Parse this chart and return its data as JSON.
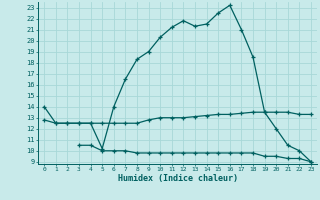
{
  "xlabel": "Humidex (Indice chaleur)",
  "bg_color": "#c8eaea",
  "grid_color": "#a8d8d8",
  "line_color": "#006060",
  "xlim": [
    -0.5,
    23.5
  ],
  "ylim": [
    8.8,
    23.5
  ],
  "yticks": [
    9,
    10,
    11,
    12,
    13,
    14,
    15,
    16,
    17,
    18,
    19,
    20,
    21,
    22,
    23
  ],
  "xticks": [
    0,
    1,
    2,
    3,
    4,
    5,
    6,
    7,
    8,
    9,
    10,
    11,
    12,
    13,
    14,
    15,
    16,
    17,
    18,
    19,
    20,
    21,
    22,
    23
  ],
  "curve_main_x": [
    0,
    1,
    2,
    3,
    4,
    5,
    6,
    7,
    8,
    9,
    10,
    11,
    12,
    13,
    14,
    15,
    16,
    17,
    18,
    19,
    20,
    21,
    22,
    23
  ],
  "curve_main_y": [
    14.0,
    12.5,
    12.5,
    12.5,
    12.5,
    10.2,
    14.0,
    16.5,
    18.3,
    19.0,
    20.3,
    21.2,
    21.8,
    21.3,
    21.5,
    22.5,
    23.2,
    21.0,
    18.5,
    13.5,
    12.0,
    10.5,
    10.0,
    9.0
  ],
  "curve_upper_x": [
    0,
    1,
    2,
    3,
    4,
    5,
    6,
    7,
    8,
    9,
    10,
    11,
    12,
    13,
    14,
    15,
    16,
    17,
    18,
    19,
    20,
    21,
    22,
    23
  ],
  "curve_upper_y": [
    12.8,
    12.5,
    12.5,
    12.5,
    12.5,
    12.5,
    12.5,
    12.5,
    12.5,
    12.8,
    13.0,
    13.0,
    13.0,
    13.1,
    13.2,
    13.3,
    13.3,
    13.4,
    13.5,
    13.5,
    13.5,
    13.5,
    13.3,
    13.3
  ],
  "curve_lower_x": [
    3,
    4,
    5,
    6,
    7,
    8,
    9,
    10,
    11,
    12,
    13,
    14,
    15,
    16,
    17,
    18,
    19,
    20,
    21,
    22,
    23
  ],
  "curve_lower_y": [
    10.5,
    10.5,
    10.0,
    10.0,
    10.0,
    9.8,
    9.8,
    9.8,
    9.8,
    9.8,
    9.8,
    9.8,
    9.8,
    9.8,
    9.8,
    9.8,
    9.5,
    9.5,
    9.3,
    9.3,
    9.0
  ]
}
